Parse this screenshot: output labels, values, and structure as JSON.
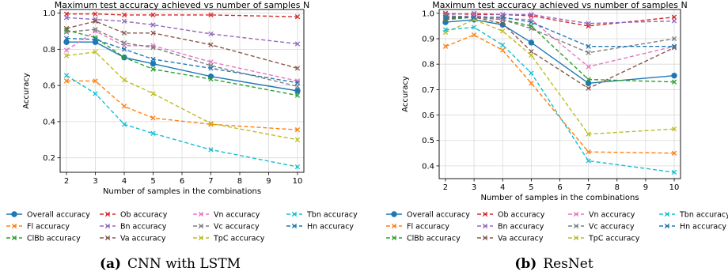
{
  "chart_data": [
    {
      "type": "line",
      "title": "Maximum test accuracy achieved vs number of samples N",
      "xlabel": "Number of samples in the combinations",
      "ylabel": "Accuracy",
      "x": [
        2,
        3,
        4,
        5,
        7,
        10
      ],
      "xlim": [
        1.78,
        10.22
      ],
      "ylim": [
        0.12,
        1.02
      ],
      "xticks": [
        2,
        3,
        4,
        5,
        6,
        7,
        8,
        9,
        10
      ],
      "yticks": [
        0.2,
        0.4,
        0.6,
        0.8,
        1.0
      ],
      "ytick_labels": [
        "0.2",
        "0.4",
        "0.6",
        "0.8",
        "1.0"
      ],
      "grid": true,
      "legend_placement": "below",
      "caption_label": "(a)",
      "caption_text": "CNN with LSTM",
      "series": [
        {
          "name": "Overall accuracy",
          "marker": "o",
          "dash": "solid",
          "values": [
            0.84,
            0.84,
            0.755,
            0.72,
            0.65,
            0.57
          ]
        },
        {
          "name": "Fl accuracy",
          "marker": "x",
          "dash": "dashed",
          "values": [
            0.625,
            0.625,
            0.485,
            0.42,
            0.385,
            0.355
          ]
        },
        {
          "name": "ClBb accuracy",
          "marker": "x",
          "dash": "dashed",
          "values": [
            0.905,
            0.865,
            0.755,
            0.69,
            0.635,
            0.545
          ]
        },
        {
          "name": "Ob accuracy",
          "marker": "x",
          "dash": "dashed",
          "values": [
            0.995,
            0.995,
            0.99,
            0.99,
            0.99,
            0.98
          ]
        },
        {
          "name": "Bn accuracy",
          "marker": "x",
          "dash": "dashed",
          "values": [
            0.975,
            0.965,
            0.955,
            0.935,
            0.885,
            0.83
          ]
        },
        {
          "name": "Va accuracy",
          "marker": "x",
          "dash": "dashed",
          "values": [
            0.915,
            0.955,
            0.89,
            0.89,
            0.825,
            0.695
          ]
        },
        {
          "name": "Vn accuracy",
          "marker": "x",
          "dash": "dashed",
          "values": [
            0.795,
            0.9,
            0.82,
            0.82,
            0.73,
            0.625
          ]
        },
        {
          "name": "Vc accuracy",
          "marker": "x",
          "dash": "dashed",
          "values": [
            0.895,
            0.91,
            0.835,
            0.81,
            0.71,
            0.595
          ]
        },
        {
          "name": "TpC accuracy",
          "marker": "x",
          "dash": "dashed",
          "values": [
            0.765,
            0.785,
            0.63,
            0.555,
            0.39,
            0.3
          ]
        },
        {
          "name": "Tbn accuracy",
          "marker": "x",
          "dash": "dashed",
          "values": [
            0.655,
            0.555,
            0.385,
            0.335,
            0.245,
            0.15
          ]
        },
        {
          "name": "Hn accuracy",
          "marker": "x",
          "dash": "dashed",
          "values": [
            0.86,
            0.855,
            0.8,
            0.745,
            0.695,
            0.615
          ]
        }
      ]
    },
    {
      "type": "line",
      "title": "Maximum test accuracy achieved vs number of samples N",
      "xlabel": "Number of samples in the combinations",
      "ylabel": "Accuracy",
      "x": [
        2,
        3,
        4,
        5,
        7,
        10
      ],
      "xlim": [
        1.78,
        10.22
      ],
      "ylim": [
        0.35,
        1.015
      ],
      "xticks": [
        2,
        3,
        4,
        5,
        6,
        7,
        8,
        9,
        10
      ],
      "yticks": [
        0.4,
        0.5,
        0.6,
        0.7,
        0.8,
        0.9,
        1.0
      ],
      "ytick_labels": [
        "0.4",
        "0.5",
        "0.6",
        "0.7",
        "0.8",
        "0.9",
        "1.0"
      ],
      "grid": true,
      "legend_placement": "below",
      "caption_label": "(b)",
      "caption_text": "ResNet",
      "series": [
        {
          "name": "Overall accuracy",
          "marker": "o",
          "dash": "solid",
          "values": [
            0.965,
            0.975,
            0.955,
            0.885,
            0.725,
            0.755
          ]
        },
        {
          "name": "Fl accuracy",
          "marker": "x",
          "dash": "dashed",
          "values": [
            0.87,
            0.915,
            0.855,
            0.725,
            0.455,
            0.45
          ]
        },
        {
          "name": "ClBb accuracy",
          "marker": "x",
          "dash": "dashed",
          "values": [
            0.975,
            0.985,
            0.975,
            0.95,
            0.74,
            0.73
          ]
        },
        {
          "name": "Ob accuracy",
          "marker": "x",
          "dash": "dashed",
          "values": [
            1.0,
            0.995,
            0.995,
            0.99,
            0.95,
            0.985
          ]
        },
        {
          "name": "Bn accuracy",
          "marker": "x",
          "dash": "dashed",
          "values": [
            0.995,
            1.0,
            0.995,
            0.995,
            0.96,
            0.97
          ]
        },
        {
          "name": "Va accuracy",
          "marker": "x",
          "dash": "dashed",
          "values": [
            0.98,
            0.985,
            0.96,
            0.85,
            0.705,
            0.865
          ]
        },
        {
          "name": "Vn accuracy",
          "marker": "x",
          "dash": "dashed",
          "values": [
            0.985,
            0.99,
            0.98,
            0.975,
            0.79,
            0.87
          ]
        },
        {
          "name": "Vc accuracy",
          "marker": "x",
          "dash": "dashed",
          "values": [
            0.99,
            0.985,
            0.975,
            0.94,
            0.845,
            0.9
          ]
        },
        {
          "name": "TpC accuracy",
          "marker": "x",
          "dash": "dashed",
          "values": [
            0.925,
            0.975,
            0.93,
            0.835,
            0.525,
            0.545
          ]
        },
        {
          "name": "Tbn accuracy",
          "marker": "x",
          "dash": "dashed",
          "values": [
            0.935,
            0.945,
            0.875,
            0.765,
            0.42,
            0.375
          ]
        },
        {
          "name": "Hn accuracy",
          "marker": "x",
          "dash": "dashed",
          "values": [
            0.985,
            0.985,
            0.985,
            0.965,
            0.87,
            0.87
          ]
        }
      ]
    }
  ],
  "colors": {
    "Overall accuracy": "#1f77b4",
    "Fl accuracy": "#ff7f0e",
    "ClBb accuracy": "#2ca02c",
    "Ob accuracy": "#d62728",
    "Bn accuracy": "#9467bd",
    "Va accuracy": "#8c564b",
    "Vn accuracy": "#e377c2",
    "Vc accuracy": "#7f7f7f",
    "TpC accuracy": "#bcbd22",
    "Tbn accuracy": "#17becf",
    "Hn accuracy": "#1f77b4"
  }
}
